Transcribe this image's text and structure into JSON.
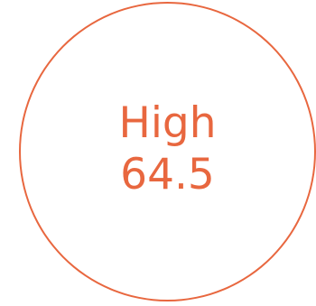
{
  "score": {
    "label": "High",
    "value": "64.5",
    "color": "#E8673F"
  }
}
